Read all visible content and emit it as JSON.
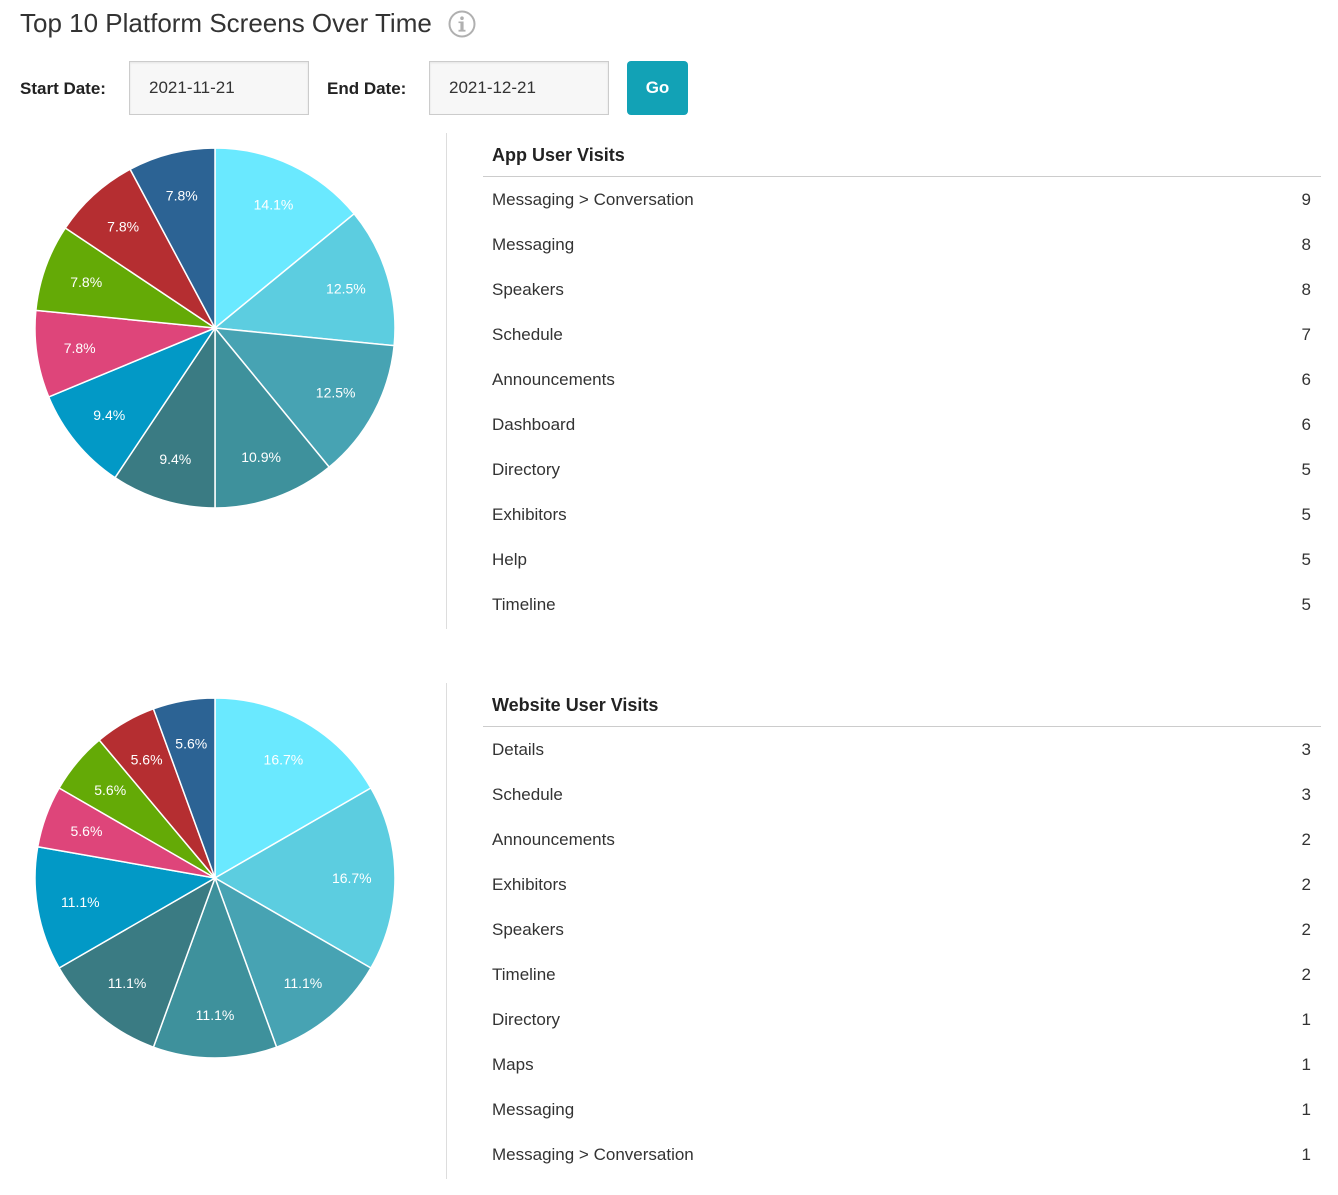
{
  "page": {
    "title": "Top 10 Platform Screens Over Time",
    "info_icon": "info-circle-icon"
  },
  "filters": {
    "start_label": "Start Date:",
    "start_value": "2021-11-21",
    "end_label": "End Date:",
    "end_value": "2021-12-21",
    "go_label": "Go",
    "go_color": "#12a2b6"
  },
  "palette": [
    "#6ae9ff",
    "#5ccde0",
    "#47a3b3",
    "#3e919c",
    "#3a7b83",
    "#0299c6",
    "#de457a",
    "#64aa06",
    "#b52e31",
    "#2c6394"
  ],
  "chart_data": [
    {
      "type": "pie",
      "title": "App User Visits",
      "categories": [
        "Messaging > Conversation",
        "Messaging",
        "Speakers",
        "Schedule",
        "Announcements",
        "Dashboard",
        "Directory",
        "Exhibitors",
        "Help",
        "Timeline"
      ],
      "values": [
        9,
        8,
        8,
        7,
        6,
        6,
        5,
        5,
        5,
        5
      ],
      "labels": [
        "14.1%",
        "12.5%",
        "12.5%",
        "10.9%",
        "9.4%",
        "9.4%",
        "7.8%",
        "7.8%",
        "7.8%",
        "7.8%"
      ]
    },
    {
      "type": "pie",
      "title": "Website User Visits",
      "categories": [
        "Details",
        "Schedule",
        "Announcements",
        "Exhibitors",
        "Speakers",
        "Timeline",
        "Directory",
        "Maps",
        "Messaging",
        "Messaging > Conversation"
      ],
      "values": [
        3,
        3,
        2,
        2,
        2,
        2,
        1,
        1,
        1,
        1
      ],
      "labels": [
        "16.7%",
        "16.7%",
        "11.1%",
        "11.1%",
        "11.1%",
        "11.1%",
        "5.6%",
        "5.6%",
        "5.6%",
        "5.6%"
      ]
    }
  ]
}
